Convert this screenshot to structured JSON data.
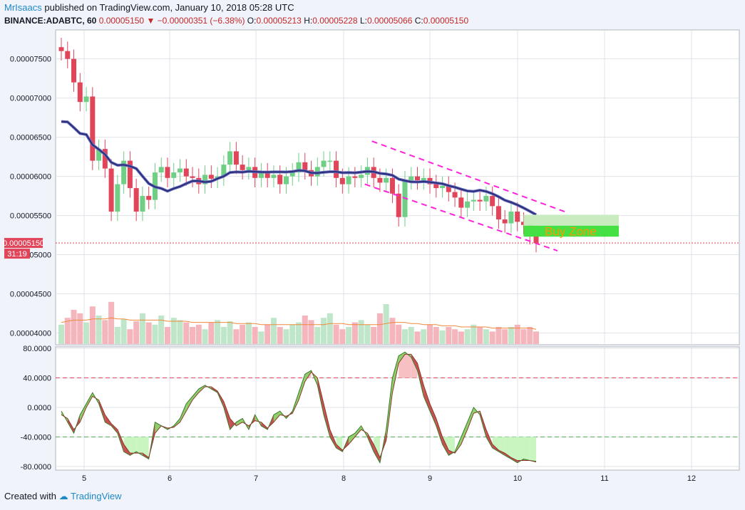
{
  "header": {
    "author": "MrIsaacs",
    "published_text": "published on TradingView.com, January 10, 2018 05:28 UTC",
    "symbol": "BINANCE:ADABTC, 60",
    "last": "0.00005150",
    "change": "−0.00000351 (−6.38%)",
    "o_label": "O:",
    "o_val": "0.00005213",
    "h_label": "H:",
    "h_val": "0.00005228",
    "l_label": "L:",
    "l_val": "0.00005066",
    "c_label": "C:",
    "c_val": "0.00005150"
  },
  "footer": {
    "created_with": "Created with",
    "brand": "TradingView"
  },
  "colors": {
    "up": "#6fcf84",
    "down": "#e0455a",
    "ma": "#2b2f78",
    "channel": "#ff22dd",
    "zone": "#44e044",
    "zone_text": "#ff9800",
    "stoch_fill_up": "#8fce6a",
    "stoch_fill_down": "#c75151"
  },
  "chart_data": [
    {
      "type": "candlestick",
      "name": "price",
      "x_ticks": [
        "5",
        "6",
        "7",
        "8",
        "9",
        "10",
        "11",
        "12"
      ],
      "y_ticks": [
        "0.00007500",
        "0.00007000",
        "0.00006500",
        "0.00006000",
        "0.00005500",
        "0.00005000",
        "0.00004500",
        "0.00004000"
      ],
      "ylim": [
        3.85e-05,
        7.87e-05
      ],
      "last_price_label": "0.00005150",
      "countdown_label": "31:19",
      "annotation": "Buy Zone",
      "series": [
        {
          "name": "close",
          "values": [
            7.6e-05,
            7.5e-05,
            7.2e-05,
            6.95e-05,
            7.02e-05,
            6.2e-05,
            6.35e-05,
            6.1e-05,
            5.55e-05,
            5.9e-05,
            6.2e-05,
            5.85e-05,
            5.55e-05,
            5.75e-05,
            5.7e-05,
            6.05e-05,
            6.12e-05,
            5.98e-05,
            6.05e-05,
            6.1e-05,
            6e-05,
            5.98e-05,
            5.9e-05,
            6.02e-05,
            5.97e-05,
            6e-05,
            6.15e-05,
            6.32e-05,
            6.15e-05,
            6.08e-05,
            6.12e-05,
            5.98e-05,
            6.05e-05,
            5.98e-05,
            6.02e-05,
            5.9e-05,
            6e-05,
            6.05e-05,
            6.18e-05,
            6.08e-05,
            6e-05,
            6.12e-05,
            6.2e-05,
            6.2e-05,
            5.98e-05,
            5.9e-05,
            6e-05,
            5.98e-05,
            6.02e-05,
            6.12e-05,
            5.98e-05,
            5.92e-05,
            5.98e-05,
            5.78e-05,
            5.48e-05,
            5.95e-05,
            6e-05,
            5.95e-05,
            5.98e-05,
            5.9e-05,
            5.85e-05,
            5.88e-05,
            5.8e-05,
            5.73e-05,
            5.6e-05,
            5.68e-05,
            5.7e-05,
            5.68e-05,
            5.75e-05,
            5.62e-05,
            5.45e-05,
            5.4e-05,
            5.55e-05,
            5.42e-05,
            5.38e-05,
            5.25e-05,
            5.15e-05
          ]
        }
      ]
    },
    {
      "type": "bar",
      "name": "volume",
      "values": [
        42,
        48,
        55,
        52,
        44,
        58,
        50,
        46,
        62,
        40,
        47,
        38,
        45,
        52,
        44,
        42,
        50,
        40,
        48,
        46,
        44,
        40,
        42,
        38,
        44,
        46,
        40,
        45,
        38,
        42,
        44,
        40,
        36,
        42,
        48,
        40,
        38,
        42,
        44,
        50,
        46,
        40,
        48,
        52,
        42,
        38,
        40,
        44,
        46,
        42,
        40,
        52,
        60,
        48,
        42,
        38,
        40,
        36,
        38,
        42,
        40,
        37,
        40,
        38,
        36,
        38,
        42,
        40,
        38,
        36,
        40,
        38,
        40,
        42,
        38,
        40,
        36
      ],
      "ma": [
        44,
        45,
        46,
        46,
        46,
        47,
        47,
        47,
        48,
        47,
        47,
        46,
        46,
        46,
        46,
        46,
        46,
        45,
        45,
        45,
        45,
        44,
        44,
        44,
        44,
        44,
        44,
        44,
        43,
        43,
        43,
        43,
        42,
        42,
        42,
        42,
        42,
        42,
        42,
        42,
        42,
        42,
        42,
        43,
        43,
        43,
        42,
        42,
        42,
        42,
        42,
        42,
        43,
        44,
        44,
        44,
        43,
        43,
        42,
        42,
        42,
        41,
        41,
        41,
        40,
        40,
        40,
        40,
        40,
        39,
        39,
        39,
        39,
        39,
        39,
        39,
        38
      ]
    },
    {
      "type": "line",
      "name": "stochastic",
      "y_ticks": [
        "80.0000",
        "40.0000",
        "0.0000",
        "-40.0000",
        "-80.0000"
      ],
      "ylim": [
        -85,
        82
      ],
      "levels": [
        40,
        -40
      ],
      "x": [
        0,
        1,
        2,
        3,
        4,
        5,
        6,
        7,
        8,
        9,
        10,
        11,
        12,
        13,
        14,
        15,
        16,
        17,
        18,
        19,
        20,
        21,
        22,
        23,
        24,
        25,
        26,
        27,
        28,
        29,
        30,
        31,
        32,
        33,
        34,
        35,
        36,
        37,
        38,
        39,
        40,
        41,
        42,
        43,
        44,
        45,
        46,
        47,
        48,
        49,
        50,
        51,
        52,
        53,
        54,
        55,
        56,
        57,
        58,
        59,
        60,
        61,
        62,
        63,
        64,
        65,
        66,
        67,
        68,
        69,
        70,
        71,
        72,
        73,
        74,
        75,
        76
      ],
      "series": [
        {
          "name": "k",
          "values": [
            -5,
            -20,
            -35,
            -10,
            5,
            20,
            5,
            -20,
            -25,
            -35,
            -60,
            -65,
            -60,
            -65,
            -70,
            -20,
            -25,
            -30,
            -25,
            -15,
            5,
            15,
            25,
            30,
            25,
            20,
            0,
            -30,
            -20,
            -15,
            -30,
            -10,
            -25,
            -30,
            -10,
            -5,
            -15,
            -5,
            20,
            45,
            50,
            30,
            -10,
            -40,
            -55,
            -60,
            -40,
            -35,
            -25,
            -40,
            -60,
            -75,
            -30,
            40,
            70,
            75,
            68,
            50,
            15,
            -5,
            -25,
            -50,
            -65,
            -60,
            -40,
            -20,
            0,
            -10,
            -40,
            -55,
            -60,
            -65,
            -70,
            -75,
            -70,
            -72,
            -73
          ]
        },
        {
          "name": "d",
          "values": [
            -10,
            -15,
            -30,
            -20,
            0,
            15,
            10,
            -10,
            -22,
            -30,
            -50,
            -62,
            -62,
            -62,
            -68,
            -35,
            -25,
            -28,
            -27,
            -20,
            -5,
            10,
            20,
            28,
            28,
            22,
            8,
            -15,
            -25,
            -20,
            -25,
            -18,
            -20,
            -28,
            -20,
            -10,
            -12,
            -8,
            10,
            35,
            48,
            40,
            5,
            -30,
            -50,
            -58,
            -50,
            -40,
            -30,
            -35,
            -50,
            -68,
            -45,
            20,
            60,
            72,
            72,
            60,
            30,
            5,
            -15,
            -40,
            -58,
            -62,
            -50,
            -30,
            -8,
            -5,
            -30,
            -50,
            -58,
            -62,
            -68,
            -72,
            -72,
            -72,
            -74
          ]
        }
      ]
    }
  ]
}
